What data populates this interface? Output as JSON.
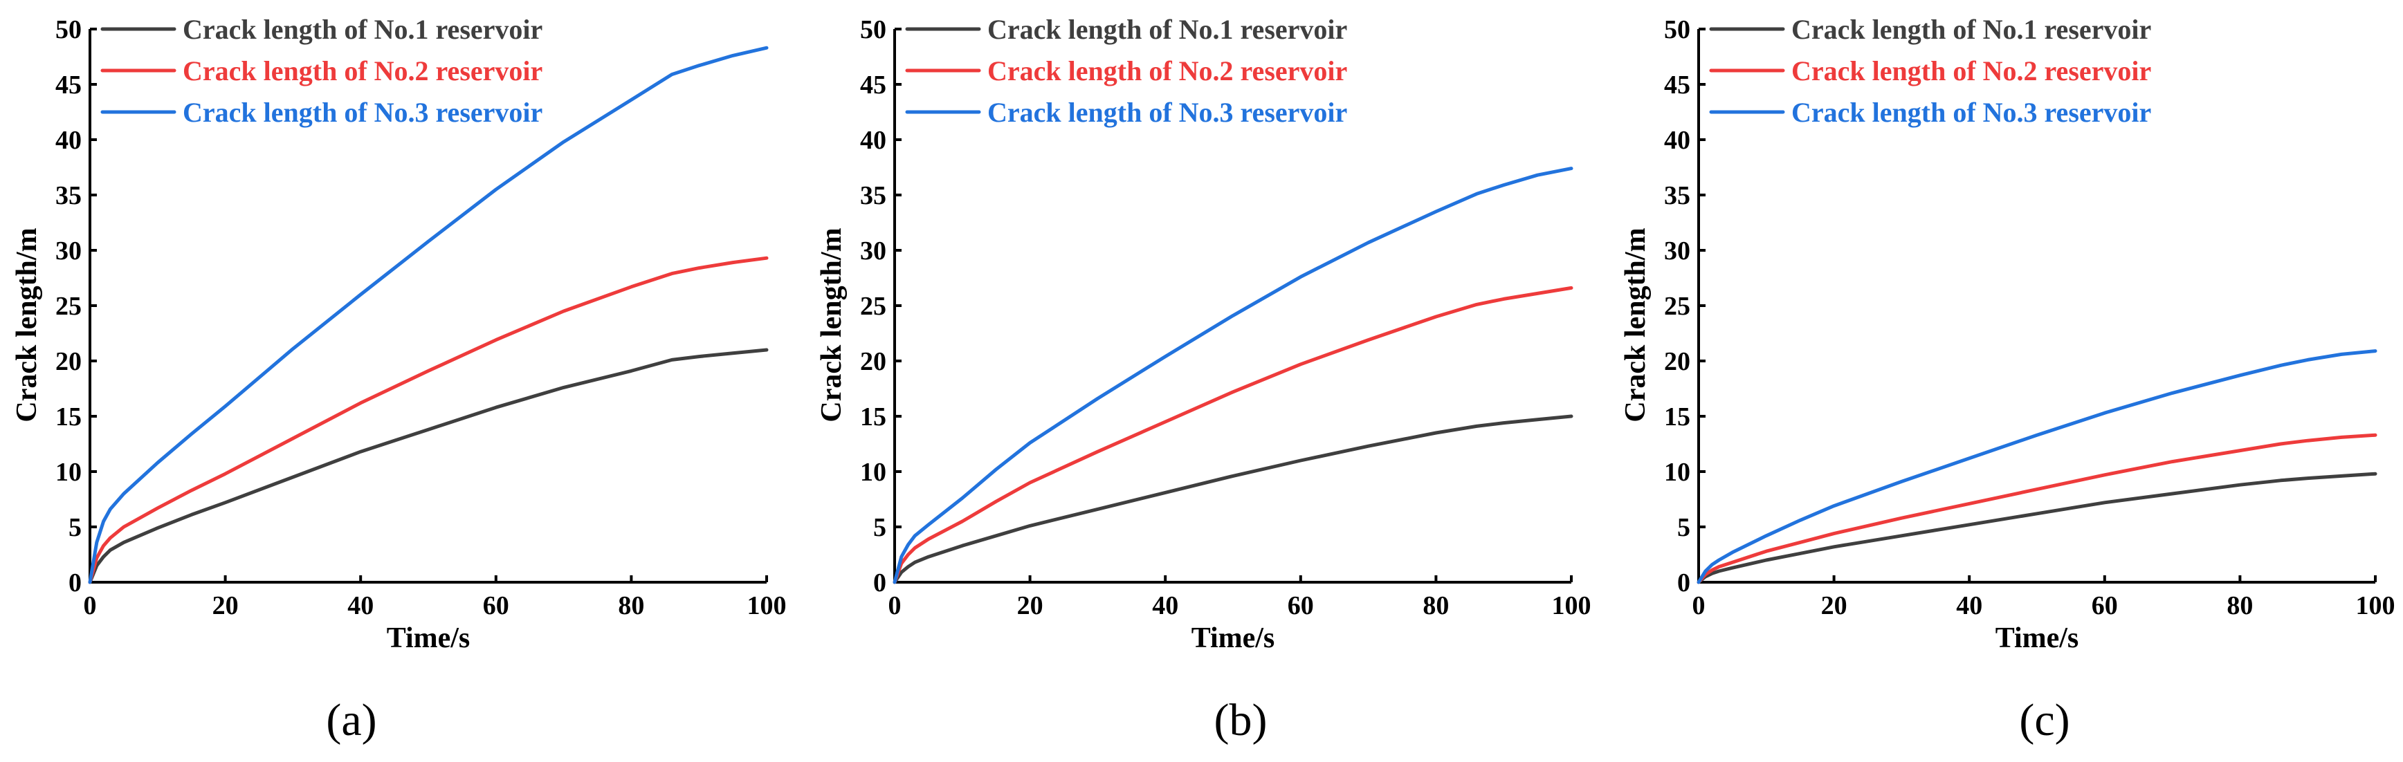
{
  "colors": {
    "series1": "#3f3f3f",
    "series2": "#ee3b3b",
    "series3": "#2273dd"
  },
  "chart_data": [
    {
      "type": "line",
      "panel_label": "(a)",
      "xlabel": "Time/s",
      "ylabel": "Crack length/m",
      "xlim": [
        0,
        100
      ],
      "ylim": [
        0,
        50
      ],
      "x_ticks": [
        0,
        20,
        40,
        60,
        80,
        100
      ],
      "y_ticks": [
        0,
        5,
        10,
        15,
        20,
        25,
        30,
        35,
        40,
        45,
        50
      ],
      "legend_position": "top-left",
      "x": [
        0,
        1,
        2,
        3,
        5,
        10,
        15,
        20,
        30,
        40,
        50,
        60,
        70,
        80,
        86,
        90,
        95,
        100
      ],
      "series": [
        {
          "name": "Crack length of No.1 reservoir",
          "values": [
            0,
            1.5,
            2.3,
            2.9,
            3.6,
            4.9,
            6.1,
            7.2,
            9.5,
            11.8,
            13.8,
            15.8,
            17.6,
            19.1,
            20.1,
            20.4,
            20.7,
            21.0
          ]
        },
        {
          "name": "Crack length of No.2 reservoir",
          "values": [
            0,
            2.2,
            3.3,
            4.0,
            5.0,
            6.7,
            8.3,
            9.8,
            13.0,
            16.2,
            19.1,
            21.9,
            24.5,
            26.7,
            27.9,
            28.4,
            28.9,
            29.3
          ]
        },
        {
          "name": "Crack length of No.3 reservoir",
          "values": [
            0,
            3.6,
            5.5,
            6.6,
            8.0,
            10.8,
            13.4,
            15.9,
            21.1,
            26.0,
            30.8,
            35.5,
            39.8,
            43.6,
            45.9,
            46.7,
            47.6,
            48.3
          ]
        }
      ]
    },
    {
      "type": "line",
      "panel_label": "(b)",
      "xlabel": "Time/s",
      "ylabel": "Crack length/m",
      "xlim": [
        0,
        100
      ],
      "ylim": [
        0,
        50
      ],
      "x_ticks": [
        0,
        20,
        40,
        60,
        80,
        100
      ],
      "y_ticks": [
        0,
        5,
        10,
        15,
        20,
        25,
        30,
        35,
        40,
        45,
        50
      ],
      "legend_position": "top-left",
      "x": [
        0,
        1,
        2,
        3,
        5,
        10,
        15,
        20,
        30,
        40,
        50,
        60,
        70,
        80,
        86,
        90,
        95,
        100
      ],
      "series": [
        {
          "name": "Crack length of No.1 reservoir",
          "values": [
            0,
            0.9,
            1.4,
            1.8,
            2.3,
            3.3,
            4.2,
            5.1,
            6.6,
            8.1,
            9.6,
            11.0,
            12.3,
            13.5,
            14.1,
            14.4,
            14.7,
            15.0
          ]
        },
        {
          "name": "Crack length of No.2 reservoir",
          "values": [
            0,
            1.7,
            2.5,
            3.1,
            3.9,
            5.5,
            7.3,
            9.0,
            11.8,
            14.5,
            17.2,
            19.7,
            21.9,
            24.0,
            25.1,
            25.6,
            26.1,
            26.6
          ]
        },
        {
          "name": "Crack length of No.3 reservoir",
          "values": [
            0,
            2.3,
            3.4,
            4.2,
            5.2,
            7.6,
            10.2,
            12.6,
            16.6,
            20.4,
            24.1,
            27.6,
            30.7,
            33.5,
            35.1,
            35.9,
            36.8,
            37.4
          ]
        }
      ]
    },
    {
      "type": "line",
      "panel_label": "(c)",
      "xlabel": "Time/s",
      "ylabel": "Crack length/m",
      "xlim": [
        0,
        100
      ],
      "ylim": [
        0,
        50
      ],
      "x_ticks": [
        0,
        20,
        40,
        60,
        80,
        100
      ],
      "y_ticks": [
        0,
        5,
        10,
        15,
        20,
        25,
        30,
        35,
        40,
        45,
        50
      ],
      "legend_position": "top-left",
      "x": [
        0,
        1,
        2,
        3,
        5,
        10,
        15,
        20,
        30,
        40,
        50,
        60,
        70,
        80,
        86,
        90,
        95,
        100
      ],
      "series": [
        {
          "name": "Crack length of No.1 reservoir",
          "values": [
            0,
            0.5,
            0.8,
            1.0,
            1.3,
            2.0,
            2.6,
            3.2,
            4.2,
            5.2,
            6.2,
            7.2,
            8.0,
            8.8,
            9.2,
            9.4,
            9.6,
            9.8
          ]
        },
        {
          "name": "Crack length of No.2 reservoir",
          "values": [
            0,
            0.7,
            1.1,
            1.4,
            1.8,
            2.8,
            3.6,
            4.4,
            5.8,
            7.1,
            8.4,
            9.7,
            10.9,
            11.9,
            12.5,
            12.8,
            13.1,
            13.3
          ]
        },
        {
          "name": "Crack length of No.3 reservoir",
          "values": [
            0,
            1.0,
            1.6,
            2.0,
            2.7,
            4.2,
            5.6,
            6.9,
            9.1,
            11.2,
            13.3,
            15.3,
            17.1,
            18.7,
            19.6,
            20.1,
            20.6,
            20.9
          ]
        }
      ]
    }
  ]
}
